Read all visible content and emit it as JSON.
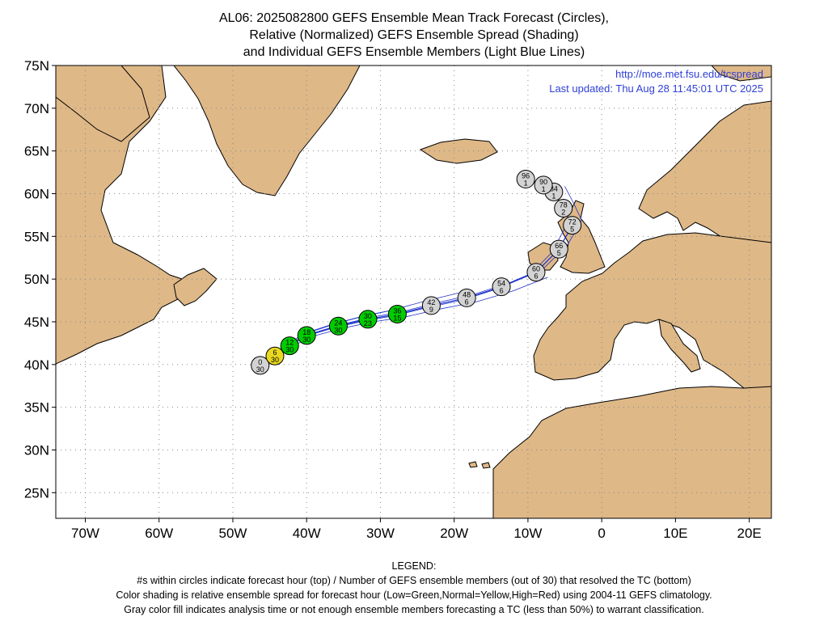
{
  "title": {
    "line1": "AL06: 2025082800 GEFS Ensemble Mean Track Forecast (Circles),",
    "line2": "Relative (Normalized) GEFS Ensemble Spread (Shading)",
    "line3": "and Individual GEFS Ensemble Members (Light Blue Lines)"
  },
  "header": {
    "url": "http://moe.met.fsu.edu/tcspread",
    "last_updated": "Last updated: Thu Aug 28 11:45:01 UTC 2025"
  },
  "map": {
    "lat_labels": [
      "75N",
      "70N",
      "65N",
      "60N",
      "55N",
      "50N",
      "45N",
      "40N",
      "35N",
      "30N",
      "25N"
    ],
    "lon_labels": [
      "70W",
      "60W",
      "50W",
      "40W",
      "30W",
      "20W",
      "10W",
      "0",
      "10E",
      "20E"
    ],
    "colors": {
      "land": "#deb887",
      "ocean": "#ffffff",
      "member_track": "#2233cc",
      "spread_low": "#00cc00",
      "spread_normal": "#e8d820",
      "spread_none": "#d3d3d3"
    }
  },
  "chart_data": {
    "type": "scatter",
    "title": "AL06: 2025082800 GEFS Ensemble Mean Track Forecast (Circles)",
    "xlim": [
      -74,
      23
    ],
    "ylim": [
      22,
      75
    ],
    "points": [
      {
        "hour": "0",
        "members": "30",
        "lon": -46.3,
        "lat": 39.9,
        "spread": "none"
      },
      {
        "hour": "6",
        "members": "30",
        "lon": -44.3,
        "lat": 41.0,
        "spread": "normal"
      },
      {
        "hour": "12",
        "members": "30",
        "lon": -42.3,
        "lat": 42.2,
        "spread": "low"
      },
      {
        "hour": "18",
        "members": "30",
        "lon": -40.0,
        "lat": 43.4,
        "spread": "low"
      },
      {
        "hour": "24",
        "members": "30",
        "lon": -35.7,
        "lat": 44.5,
        "spread": "low"
      },
      {
        "hour": "30",
        "members": "23",
        "lon": -31.7,
        "lat": 45.3,
        "spread": "low"
      },
      {
        "hour": "36",
        "members": "15",
        "lon": -27.7,
        "lat": 45.9,
        "spread": "low"
      },
      {
        "hour": "42",
        "members": "9",
        "lon": -23.1,
        "lat": 46.9,
        "spread": "none"
      },
      {
        "hour": "48",
        "members": "6",
        "lon": -18.3,
        "lat": 47.8,
        "spread": "none"
      },
      {
        "hour": "54",
        "members": "6",
        "lon": -13.6,
        "lat": 49.1,
        "spread": "none"
      },
      {
        "hour": "60",
        "members": "6",
        "lon": -8.9,
        "lat": 50.8,
        "spread": "none"
      },
      {
        "hour": "66",
        "members": "5",
        "lon": -5.8,
        "lat": 53.5,
        "spread": "none"
      },
      {
        "hour": "72",
        "members": "5",
        "lon": -4.0,
        "lat": 56.3,
        "spread": "none"
      },
      {
        "hour": "78",
        "members": "2",
        "lon": -5.2,
        "lat": 58.3,
        "spread": "none"
      },
      {
        "hour": "84",
        "members": "1",
        "lon": -6.5,
        "lat": 60.2,
        "spread": "none"
      },
      {
        "hour": "90",
        "members": "1",
        "lon": -7.9,
        "lat": 61.0,
        "spread": "none"
      },
      {
        "hour": "96",
        "members": "1",
        "lon": -10.3,
        "lat": 61.7,
        "spread": "none"
      }
    ]
  },
  "legend": {
    "heading": "LEGEND:",
    "line1": "#s within circles indicate forecast hour (top) / Number of GEFS ensemble members (out of 30) that resolved the TC (bottom)",
    "line2": "Color shading is relative ensemble spread for forecast hour (Low=Green,Normal=Yellow,High=Red) using 2004-11 GEFS climatology.",
    "line3": "Gray color fill indicates analysis time or not enough ensemble members forecasting a TC (less than 50%) to warrant classification."
  }
}
